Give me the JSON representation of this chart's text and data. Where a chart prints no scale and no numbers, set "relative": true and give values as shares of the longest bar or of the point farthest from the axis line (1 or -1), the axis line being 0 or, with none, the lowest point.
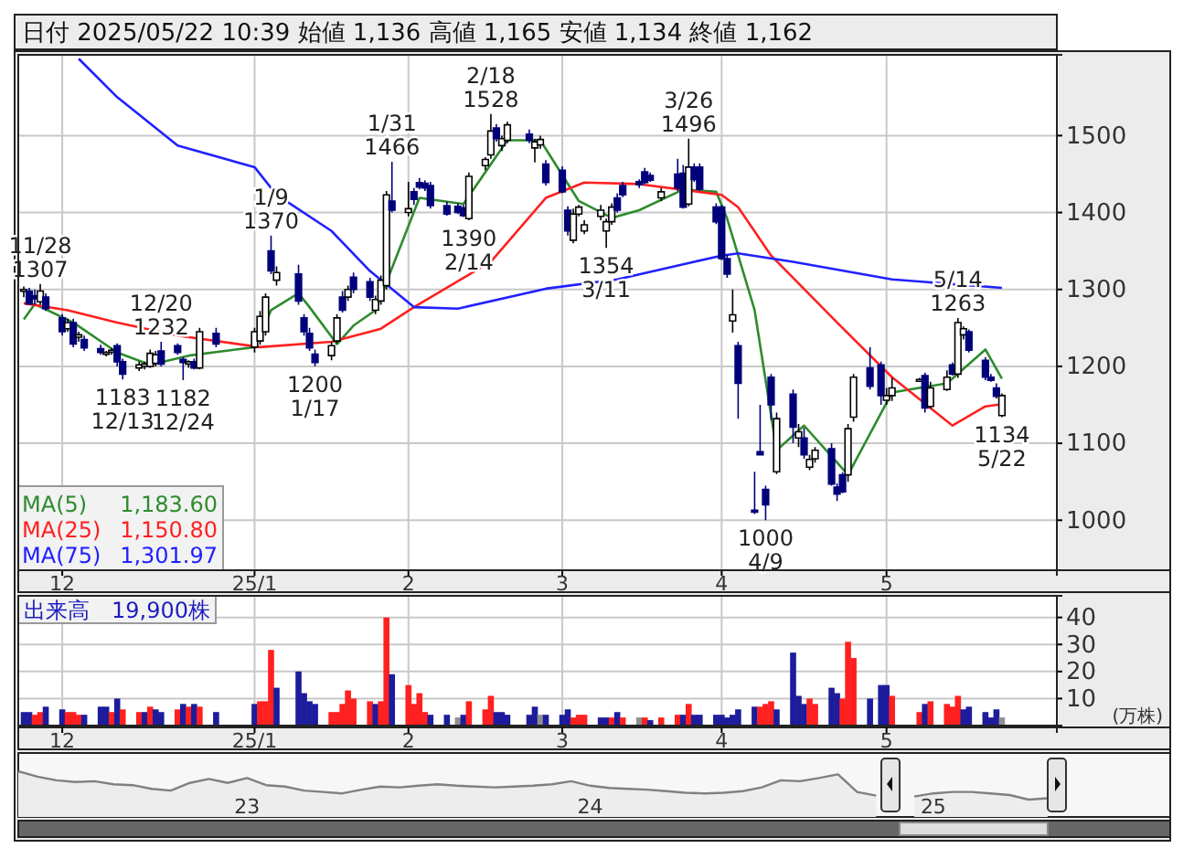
{
  "chart_data": [
    {
      "type": "candlestick",
      "title": "日付 2025/05/22 10:39 始値 1,136 高値 1,165 安値 1,134 終値 1,162",
      "x": [
        "2024-11-25",
        "2024-11-26",
        "2024-11-27",
        "2024-11-28",
        "2024-11-29",
        "2024-12-02",
        "2024-12-03",
        "2024-12-04",
        "2024-12-05",
        "2024-12-06",
        "2024-12-09",
        "2024-12-10",
        "2024-12-11",
        "2024-12-12",
        "2024-12-13",
        "2024-12-16",
        "2024-12-17",
        "2024-12-18",
        "2024-12-19",
        "2024-12-20",
        "2024-12-23",
        "2024-12-24",
        "2024-12-25",
        "2024-12-26",
        "2024-12-27",
        "2024-12-30",
        "2025-01-06",
        "2025-01-07",
        "2025-01-08",
        "2025-01-09",
        "2025-01-10",
        "2025-01-14",
        "2025-01-15",
        "2025-01-16",
        "2025-01-17",
        "2025-01-20",
        "2025-01-21",
        "2025-01-22",
        "2025-01-23",
        "2025-01-24",
        "2025-01-27",
        "2025-01-28",
        "2025-01-29",
        "2025-01-30",
        "2025-01-31",
        "2025-02-03",
        "2025-02-04",
        "2025-02-05",
        "2025-02-06",
        "2025-02-07",
        "2025-02-10",
        "2025-02-12",
        "2025-02-13",
        "2025-02-14",
        "2025-02-17",
        "2025-02-18",
        "2025-02-19",
        "2025-02-20",
        "2025-02-21",
        "2025-02-25",
        "2025-02-26",
        "2025-02-27",
        "2025-02-28",
        "2025-03-03",
        "2025-03-04",
        "2025-03-05",
        "2025-03-06",
        "2025-03-07",
        "2025-03-10",
        "2025-03-11",
        "2025-03-12",
        "2025-03-13",
        "2025-03-14",
        "2025-03-17",
        "2025-03-18",
        "2025-03-19",
        "2025-03-21",
        "2025-03-24",
        "2025-03-25",
        "2025-03-26",
        "2025-03-27",
        "2025-03-28",
        "2025-03-31",
        "2025-04-01",
        "2025-04-02",
        "2025-04-03",
        "2025-04-04",
        "2025-04-07",
        "2025-04-08",
        "2025-04-09",
        "2025-04-10",
        "2025-04-11",
        "2025-04-14",
        "2025-04-15",
        "2025-04-16",
        "2025-04-17",
        "2025-04-18",
        "2025-04-21",
        "2025-04-22",
        "2025-04-23",
        "2025-04-24",
        "2025-04-25",
        "2025-04-28",
        "2025-04-30",
        "2025-05-01",
        "2025-05-02",
        "2025-05-07",
        "2025-05-08",
        "2025-05-09",
        "2025-05-12",
        "2025-05-13",
        "2025-05-14",
        "2025-05-15",
        "2025-05-16",
        "2025-05-19",
        "2025-05-20",
        "2025-05-21",
        "2025-05-22"
      ],
      "ohlc": [
        [
          1298,
          1304,
          1290,
          1300
        ],
        [
          1298,
          1302,
          1280,
          1281
        ],
        [
          1292,
          1300,
          1280,
          1288
        ],
        [
          1284,
          1307,
          1280,
          1298
        ],
        [
          1290,
          1295,
          1272,
          1275
        ],
        [
          1263,
          1268,
          1240,
          1245
        ],
        [
          1249,
          1262,
          1245,
          1257
        ],
        [
          1257,
          1262,
          1225,
          1229
        ],
        [
          1238,
          1245,
          1232,
          1241
        ],
        [
          1235,
          1240,
          1220,
          1224
        ],
        [
          1223,
          1228,
          1215,
          1218
        ],
        [
          1217,
          1220,
          1213,
          1218
        ],
        [
          1220,
          1224,
          1215,
          1221
        ],
        [
          1227,
          1230,
          1200,
          1206
        ],
        [
          1206,
          1210,
          1183,
          1190
        ],
        [
          1198,
          1206,
          1194,
          1202
        ],
        [
          1200,
          1206,
          1196,
          1203
        ],
        [
          1200,
          1222,
          1198,
          1217
        ],
        [
          1204,
          1220,
          1200,
          1215
        ],
        [
          1220,
          1232,
          1200,
          1203
        ],
        [
          1227,
          1230,
          1215,
          1218
        ],
        [
          1209,
          1212,
          1182,
          1205
        ],
        [
          1203,
          1208,
          1198,
          1206
        ],
        [
          1206,
          1210,
          1196,
          1198
        ],
        [
          1198,
          1250,
          1196,
          1245
        ],
        [
          1243,
          1250,
          1225,
          1229
        ],
        [
          1225,
          1250,
          1218,
          1245
        ],
        [
          1233,
          1272,
          1228,
          1265
        ],
        [
          1245,
          1295,
          1240,
          1290
        ],
        [
          1350,
          1370,
          1320,
          1324
        ],
        [
          1312,
          1330,
          1305,
          1322
        ],
        [
          1320,
          1332,
          1280,
          1285
        ],
        [
          1263,
          1268,
          1240,
          1245
        ],
        [
          1243,
          1250,
          1220,
          1224
        ],
        [
          1216,
          1222,
          1200,
          1205
        ],
        [
          1214,
          1232,
          1208,
          1227
        ],
        [
          1233,
          1268,
          1230,
          1263
        ],
        [
          1290,
          1298,
          1270,
          1273
        ],
        [
          1290,
          1305,
          1285,
          1300
        ],
        [
          1316,
          1322,
          1295,
          1300
        ],
        [
          1310,
          1315,
          1285,
          1290
        ],
        [
          1273,
          1292,
          1268,
          1287
        ],
        [
          1285,
          1318,
          1280,
          1312
        ],
        [
          1305,
          1428,
          1300,
          1423
        ],
        [
          1415,
          1466,
          1400,
          1403
        ],
        [
          1400,
          1440,
          1395,
          1405
        ],
        [
          1427,
          1432,
          1410,
          1417
        ],
        [
          1439,
          1445,
          1430,
          1433
        ],
        [
          1438,
          1442,
          1428,
          1432
        ],
        [
          1435,
          1440,
          1405,
          1409
        ],
        [
          1409,
          1414,
          1396,
          1398
        ],
        [
          1408,
          1412,
          1398,
          1400
        ],
        [
          1406,
          1410,
          1394,
          1396
        ],
        [
          1392,
          1452,
          1390,
          1447
        ],
        [
          1461,
          1472,
          1455,
          1469
        ],
        [
          1475,
          1528,
          1470,
          1506
        ],
        [
          1510,
          1515,
          1492,
          1496
        ],
        [
          1487,
          1500,
          1480,
          1496
        ],
        [
          1494,
          1518,
          1490,
          1514
        ],
        [
          1502,
          1508,
          1490,
          1494
        ],
        [
          1484,
          1496,
          1465,
          1492
        ],
        [
          1488,
          1500,
          1483,
          1495
        ],
        [
          1463,
          1468,
          1435,
          1439
        ],
        [
          1455,
          1460,
          1425,
          1427
        ],
        [
          1403,
          1408,
          1370,
          1376
        ],
        [
          1364,
          1405,
          1360,
          1398
        ],
        [
          1398,
          1410,
          1395,
          1407
        ],
        [
          1376,
          1390,
          1372,
          1384
        ],
        [
          1395,
          1410,
          1390,
          1403
        ],
        [
          1376,
          1392,
          1354,
          1388
        ],
        [
          1388,
          1412,
          1384,
          1407
        ],
        [
          1419,
          1425,
          1400,
          1403
        ],
        [
          1435,
          1440,
          1420,
          1423
        ],
        [
          1440,
          1443,
          1432,
          1436
        ],
        [
          1453,
          1458,
          1437,
          1439
        ],
        [
          1448,
          1452,
          1440,
          1442
        ],
        [
          1419,
          1432,
          1415,
          1427
        ],
        [
          1450,
          1470,
          1428,
          1432
        ],
        [
          1451,
          1462,
          1405,
          1407
        ],
        [
          1411,
          1496,
          1408,
          1459
        ],
        [
          1459,
          1464,
          1440,
          1443
        ],
        [
          1459,
          1464,
          1428,
          1430
        ],
        [
          1407,
          1412,
          1385,
          1388
        ],
        [
          1407,
          1410,
          1338,
          1340
        ],
        [
          1340,
          1345,
          1315,
          1320
        ],
        [
          1259,
          1300,
          1244,
          1267
        ],
        [
          1227,
          1232,
          1132,
          1178
        ],
        [
          1013,
          1063,
          1008,
          1011
        ],
        [
          1089,
          1150,
          1085,
          1085
        ],
        [
          1040,
          1045,
          1000,
          1020
        ],
        [
          1186,
          1190,
          1130,
          1150
        ],
        [
          1063,
          1140,
          1060,
          1132
        ],
        [
          1164,
          1170,
          1100,
          1121
        ],
        [
          1107,
          1125,
          1095,
          1115
        ],
        [
          1107,
          1120,
          1080,
          1085
        ],
        [
          1069,
          1085,
          1065,
          1079
        ],
        [
          1080,
          1095,
          1075,
          1091
        ],
        [
          1093,
          1100,
          1045,
          1047
        ],
        [
          1043,
          1048,
          1025,
          1034
        ],
        [
          1059,
          1062,
          1035,
          1037
        ],
        [
          1059,
          1125,
          1050,
          1119
        ],
        [
          1134,
          1190,
          1128,
          1186
        ],
        [
          1198,
          1225,
          1170,
          1174
        ],
        [
          1202,
          1206,
          1150,
          1162
        ],
        [
          1156,
          1172,
          1150,
          1162
        ],
        [
          1162,
          1185,
          1155,
          1172
        ],
        [
          1182,
          1185,
          1180,
          1183
        ],
        [
          1188,
          1192,
          1140,
          1146
        ],
        [
          1148,
          1180,
          1145,
          1172
        ],
        [
          1170,
          1195,
          1168,
          1186
        ],
        [
          1202,
          1205,
          1188,
          1190
        ],
        [
          1190,
          1263,
          1185,
          1257
        ],
        [
          1241,
          1252,
          1235,
          1249
        ],
        [
          1245,
          1248,
          1218,
          1221
        ],
        [
          1208,
          1212,
          1182,
          1186
        ],
        [
          1186,
          1190,
          1180,
          1182
        ],
        [
          1172,
          1178,
          1158,
          1161
        ],
        [
          1136,
          1165,
          1134,
          1162
        ]
      ],
      "series": [
        {
          "name": "MA(5)",
          "type": "line",
          "color": "#2e8b2e",
          "x": [
            "2024-11-25",
            "2024-11-27",
            "2024-12-04",
            "2024-12-12",
            "2024-12-18",
            "2024-12-25",
            "2025-01-06",
            "2025-01-09",
            "2025-01-14",
            "2025-01-16",
            "2025-01-21",
            "2025-01-24",
            "2025-01-28",
            "2025-02-05",
            "2025-02-13",
            "2025-02-21",
            "2025-02-27",
            "2025-03-06",
            "2025-03-12",
            "2025-03-17",
            "2025-03-25",
            "2025-03-31",
            "2025-04-02",
            "2025-04-07",
            "2025-04-11",
            "2025-04-16",
            "2025-04-24",
            "2025-05-02",
            "2025-05-12",
            "2025-05-19",
            "2025-05-22"
          ],
          "values": [
            1261,
            1281,
            1257,
            1218,
            1202,
            1214,
            1225,
            1273,
            1295,
            1277,
            1229,
            1253,
            1273,
            1419,
            1411,
            1494,
            1494,
            1415,
            1393,
            1403,
            1430,
            1427,
            1392,
            1273,
            1091,
            1123,
            1059,
            1166,
            1178,
            1222,
            1184
          ]
        },
        {
          "name": "MA(25)",
          "type": "line",
          "color": "#ff2020",
          "x": [
            "2024-11-25",
            "2024-12-03",
            "2024-12-12",
            "2024-12-23",
            "2025-01-07",
            "2025-01-20",
            "2025-01-27",
            "2025-01-29",
            "2025-02-04",
            "2025-02-18",
            "2025-02-28",
            "2025-03-07",
            "2025-03-17",
            "2025-04-01",
            "2025-04-04",
            "2025-04-10",
            "2025-04-22",
            "2025-05-02",
            "2025-05-13",
            "2025-05-19",
            "2025-05-22"
          ],
          "values": [
            1282,
            1273,
            1257,
            1240,
            1225,
            1232,
            1245,
            1249,
            1277,
            1336,
            1419,
            1439,
            1437,
            1423,
            1407,
            1344,
            1257,
            1186,
            1123,
            1148,
            1151
          ]
        },
        {
          "name": "MA(75)",
          "type": "line",
          "color": "#2020ff",
          "x": [
            "2024-12-05",
            "2024-12-12",
            "2024-12-23",
            "2025-01-06",
            "2025-01-10",
            "2025-01-20",
            "2025-01-27",
            "2025-02-04",
            "2025-02-12",
            "2025-02-28",
            "2025-03-13",
            "2025-03-27",
            "2025-04-01",
            "2025-04-04",
            "2025-04-14",
            "2025-05-02",
            "2025-05-22"
          ],
          "values": [
            1600,
            1550,
            1487,
            1459,
            1423,
            1376,
            1324,
            1277,
            1275,
            1301,
            1313,
            1336,
            1344,
            1347,
            1336,
            1313,
            1302
          ]
        }
      ],
      "annotations": [
        "1,183.60",
        "1,150.80",
        "1,301.97",
        {
          "text": "11/28\n1307",
          "x": "2024-11-28",
          "y": 1307
        },
        {
          "text": "1183\n12/13",
          "x": "2024-12-13",
          "y": 1183
        },
        {
          "text": "12/20\n1232",
          "x": "2024-12-20",
          "y": 1232
        },
        {
          "text": "1182\n12/24",
          "x": "2024-12-24",
          "y": 1182
        },
        {
          "text": "1/9\n1370",
          "x": "2025-01-09",
          "y": 1370
        },
        {
          "text": "1200\n1/17",
          "x": "2025-01-17",
          "y": 1200
        },
        {
          "text": "1/31\n1466",
          "x": "2025-01-31",
          "y": 1466
        },
        {
          "text": "1390\n2/14",
          "x": "2025-02-14",
          "y": 1390
        },
        {
          "text": "2/18\n1528",
          "x": "2025-02-18",
          "y": 1528
        },
        {
          "text": "1354\n3/11",
          "x": "2025-03-11",
          "y": 1354
        },
        {
          "text": "3/26\n1496",
          "x": "2025-03-26",
          "y": 1496
        },
        {
          "text": "1000\n4/9",
          "x": "2025-04-09",
          "y": 1000
        },
        {
          "text": "5/14\n1263",
          "x": "2025-05-14",
          "y": 1263
        },
        {
          "text": "1134\n5/22",
          "x": "2025-05-22",
          "y": 1134
        }
      ],
      "ylim": [
        935,
        1605
      ],
      "yticks": [
        1000,
        1100,
        1200,
        1300,
        1400,
        1500
      ],
      "xticks": [
        {
          "value": "2024-12-02",
          "label": "12"
        },
        {
          "value": "2025-01-06",
          "label": "25/1"
        },
        {
          "value": "2025-02-03",
          "label": "2"
        },
        {
          "value": "2025-03-03",
          "label": "3"
        },
        {
          "value": "2025-04-01",
          "label": "4"
        },
        {
          "value": "2025-05-01",
          "label": "5"
        }
      ],
      "xlim": [
        "2024-11-24",
        "2025-06-01"
      ],
      "grid": true,
      "legend": "bottom left"
    },
    {
      "type": "bar",
      "title": "出来高　19,900株",
      "ylabel": "(万株)",
      "x": [
        "2024-11-25",
        "2024-11-26",
        "2024-11-27",
        "2024-11-28",
        "2024-11-29",
        "2024-12-02",
        "2024-12-03",
        "2024-12-04",
        "2024-12-05",
        "2024-12-06",
        "2024-12-09",
        "2024-12-10",
        "2024-12-11",
        "2024-12-12",
        "2024-12-13",
        "2024-12-16",
        "2024-12-17",
        "2024-12-18",
        "2024-12-19",
        "2024-12-20",
        "2024-12-23",
        "2024-12-24",
        "2024-12-25",
        "2024-12-26",
        "2024-12-27",
        "2024-12-30",
        "2025-01-06",
        "2025-01-07",
        "2025-01-08",
        "2025-01-09",
        "2025-01-10",
        "2025-01-14",
        "2025-01-15",
        "2025-01-16",
        "2025-01-17",
        "2025-01-20",
        "2025-01-21",
        "2025-01-22",
        "2025-01-23",
        "2025-01-24",
        "2025-01-27",
        "2025-01-28",
        "2025-01-29",
        "2025-01-30",
        "2025-01-31",
        "2025-02-03",
        "2025-02-04",
        "2025-02-05",
        "2025-02-06",
        "2025-02-07",
        "2025-02-10",
        "2025-02-12",
        "2025-02-13",
        "2025-02-14",
        "2025-02-17",
        "2025-02-18",
        "2025-02-19",
        "2025-02-20",
        "2025-02-21",
        "2025-02-25",
        "2025-02-26",
        "2025-02-27",
        "2025-02-28",
        "2025-03-03",
        "2025-03-04",
        "2025-03-05",
        "2025-03-06",
        "2025-03-07",
        "2025-03-10",
        "2025-03-11",
        "2025-03-12",
        "2025-03-13",
        "2025-03-14",
        "2025-03-17",
        "2025-03-18",
        "2025-03-19",
        "2025-03-21",
        "2025-03-24",
        "2025-03-25",
        "2025-03-26",
        "2025-03-27",
        "2025-03-28",
        "2025-03-31",
        "2025-04-01",
        "2025-04-02",
        "2025-04-03",
        "2025-04-04",
        "2025-04-07",
        "2025-04-08",
        "2025-04-09",
        "2025-04-10",
        "2025-04-11",
        "2025-04-14",
        "2025-04-15",
        "2025-04-16",
        "2025-04-17",
        "2025-04-18",
        "2025-04-21",
        "2025-04-22",
        "2025-04-23",
        "2025-04-24",
        "2025-04-25",
        "2025-04-28",
        "2025-04-30",
        "2025-05-01",
        "2025-05-02",
        "2025-05-07",
        "2025-05-08",
        "2025-05-09",
        "2025-05-12",
        "2025-05-13",
        "2025-05-14",
        "2025-05-15",
        "2025-05-16",
        "2025-05-19",
        "2025-05-20",
        "2025-05-21",
        "2025-05-22"
      ],
      "values": [
        5,
        5,
        4,
        5,
        7,
        6,
        5,
        5,
        4,
        4,
        7,
        7,
        5,
        10,
        6,
        5,
        5,
        7,
        6,
        5,
        6,
        8,
        7,
        8,
        7,
        5,
        8,
        9,
        9,
        28,
        14,
        20,
        12,
        9,
        8,
        5,
        5,
        8,
        13,
        10,
        9,
        8,
        9,
        40,
        19,
        15,
        8,
        12,
        5,
        4,
        4,
        3,
        4,
        9,
        6,
        11,
        5,
        5,
        4,
        4,
        7,
        4,
        4,
        4,
        6,
        3,
        4,
        4,
        3,
        3,
        3,
        5,
        3,
        3,
        3,
        2,
        3,
        4,
        4,
        8,
        4,
        4,
        4,
        4,
        3,
        4,
        6,
        7,
        7,
        8,
        9,
        6,
        27,
        11,
        8,
        10,
        8,
        14,
        12,
        10,
        31,
        25,
        10,
        15,
        15,
        11,
        5,
        8,
        9,
        8,
        7,
        11,
        6,
        7,
        5,
        3,
        6,
        3
      ],
      "colors": [
        "#1c1c9c",
        "#1c1c9c",
        "#ff2020",
        "#ff2020",
        "#1c1c9c",
        "#1c1c9c",
        "#ff2020",
        "#ff2020",
        "#ff2020",
        "#1c1c9c",
        "#1c1c9c",
        "#1c1c9c",
        "#ff2020",
        "#1c1c9c",
        "#ff2020",
        "#ff2020",
        "#1c1c9c",
        "#ff2020",
        "#1c1c9c",
        "#1c1c9c",
        "#ff2020",
        "#1c1c9c",
        "#ff2020",
        "#1c1c9c",
        "#ff2020",
        "#1c1c9c",
        "#1c1c9c",
        "#ff2020",
        "#ff2020",
        "#ff2020",
        "#1c1c9c",
        "#1c1c9c",
        "#1c1c9c",
        "#1c1c9c",
        "#1c1c9c",
        "#ff2020",
        "#ff2020",
        "#ff2020",
        "#ff2020",
        "#ff2020",
        "#ff2020",
        "#1c1c9c",
        "#ff2020",
        "#ff2020",
        "#1c1c9c",
        "#ff2020",
        "#ff2020",
        "#ff2020",
        "#ff2020",
        "#1c1c9c",
        "#1c1c9c",
        "#909090",
        "#1c1c9c",
        "#ff2020",
        "#ff2020",
        "#ff2020",
        "#1c1c9c",
        "#1c1c9c",
        "#1c1c9c",
        "#1c1c9c",
        "#1c1c9c",
        "#909090",
        "#1c1c9c",
        "#1c1c9c",
        "#1c1c9c",
        "#ff2020",
        "#ff2020",
        "#ff2020",
        "#1c1c9c",
        "#1c1c9c",
        "#ff2020",
        "#1c1c9c",
        "#ff2020",
        "#909090",
        "#ff2020",
        "#1c1c9c",
        "#ff2020",
        "#ff2020",
        "#1c1c9c",
        "#ff2020",
        "#1c1c9c",
        "#1c1c9c",
        "#1c1c9c",
        "#1c1c9c",
        "#1c1c9c",
        "#1c1c9c",
        "#1c1c9c",
        "#1c1c9c",
        "#ff2020",
        "#ff2020",
        "#ff2020",
        "#1c1c9c",
        "#1c1c9c",
        "#1c1c9c",
        "#1c1c9c",
        "#ff2020",
        "#ff2020",
        "#1c1c9c",
        "#1c1c9c",
        "#ff2020",
        "#ff2020",
        "#ff2020",
        "#1c1c9c",
        "#1c1c9c",
        "#1c1c9c",
        "#ff2020",
        "#ff2020",
        "#1c1c9c",
        "#ff2020",
        "#ff2020",
        "#ff2020",
        "#ff2020",
        "#1c1c9c",
        "#1c1c9c",
        "#1c1c9c",
        "#1c1c9c",
        "#1c1c9c",
        "#909090"
      ],
      "ylim": [
        0,
        48
      ],
      "yticks": [
        10,
        20,
        30,
        40
      ],
      "xlim": [
        "2024-11-24",
        "2025-06-01"
      ],
      "xticks": [
        {
          "value": "2024-12-02",
          "label": "12"
        },
        {
          "value": "2025-01-06",
          "label": "25/1"
        },
        {
          "value": "2025-02-03",
          "label": "2"
        },
        {
          "value": "2025-03-03",
          "label": "3"
        },
        {
          "value": "2025-04-01",
          "label": "4"
        },
        {
          "value": "2025-05-01",
          "label": "5"
        }
      ],
      "grid": true
    },
    {
      "type": "area",
      "relative": true,
      "color": "#808080",
      "categories": [
        null,
        null,
        null,
        null,
        null,
        null,
        null,
        null,
        null,
        null,
        null,
        null,
        "23",
        null,
        null,
        null,
        null,
        null,
        null,
        null,
        null,
        null,
        null,
        null,
        null,
        null,
        null,
        null,
        null,
        null,
        "24",
        null,
        null,
        null,
        null,
        null,
        null,
        null,
        null,
        null,
        null,
        null,
        null,
        null,
        null,
        null,
        null,
        null,
        "25",
        null,
        null,
        null,
        null,
        null,
        null
      ],
      "values": [
        1.0,
        0.81,
        0.68,
        0.62,
        0.65,
        0.54,
        0.51,
        0.38,
        0.32,
        0.59,
        0.73,
        0.59,
        0.76,
        0.51,
        0.46,
        0.32,
        0.27,
        0.22,
        0.35,
        0.46,
        0.43,
        0.49,
        0.54,
        0.49,
        0.46,
        0.43,
        0.46,
        0.49,
        0.54,
        0.65,
        0.49,
        0.41,
        0.38,
        0.35,
        0.3,
        0.24,
        0.22,
        0.24,
        0.3,
        0.43,
        0.68,
        0.65,
        0.76,
        0.89,
        0.27,
        0.14,
        null,
        0.11,
        0.22,
        0.27,
        0.27,
        0.22,
        0.16,
        0,
        0.05
      ]
    }
  ]
}
